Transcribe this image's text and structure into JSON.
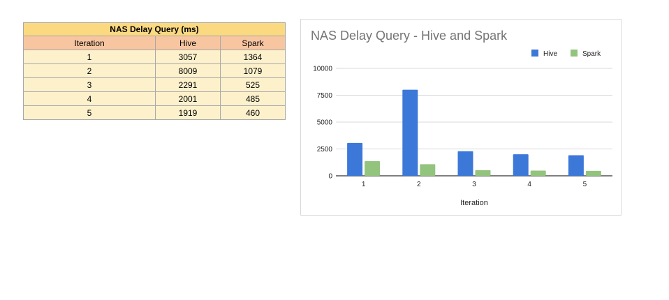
{
  "table": {
    "title": "NAS Delay Query (ms)",
    "headers": [
      "Iteration",
      "Hive",
      "Spark"
    ],
    "rows": [
      [
        "1",
        "3057",
        "1364"
      ],
      [
        "2",
        "8009",
        "1079"
      ],
      [
        "3",
        "2291",
        "525"
      ],
      [
        "4",
        "2001",
        "485"
      ],
      [
        "5",
        "1919",
        "460"
      ]
    ]
  },
  "chart_data": {
    "type": "bar",
    "title": "NAS Delay Query - Hive and Spark",
    "xlabel": "Iteration",
    "ylabel": "",
    "categories": [
      "1",
      "2",
      "3",
      "4",
      "5"
    ],
    "series": [
      {
        "name": "Hive",
        "values": [
          3057,
          8009,
          2291,
          2001,
          1919
        ],
        "color": "#3c78d8"
      },
      {
        "name": "Spark",
        "values": [
          1364,
          1079,
          525,
          485,
          460
        ],
        "color": "#93c47d"
      }
    ],
    "ylim": [
      0,
      10000
    ],
    "yticks": [
      "0",
      "2500",
      "5000",
      "7500",
      "10000"
    ],
    "ytick_values": [
      0,
      2500,
      5000,
      7500,
      10000
    ],
    "grid": true,
    "legend_position": "top-right"
  }
}
